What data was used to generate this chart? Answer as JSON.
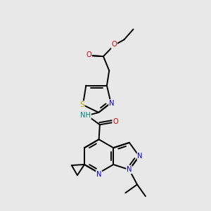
{
  "bg_color": "#e8e8e8",
  "atom_colors": {
    "C": "#000000",
    "N": "#0000cc",
    "O": "#cc0000",
    "S": "#aaaa00",
    "H": "#008888"
  },
  "bond_color": "#000000",
  "bond_width": 1.4,
  "fig_w": 3.0,
  "fig_h": 3.0,
  "dpi": 100,
  "xlim": [
    -0.3,
    2.7
  ],
  "ylim": [
    -3.2,
    1.5
  ]
}
